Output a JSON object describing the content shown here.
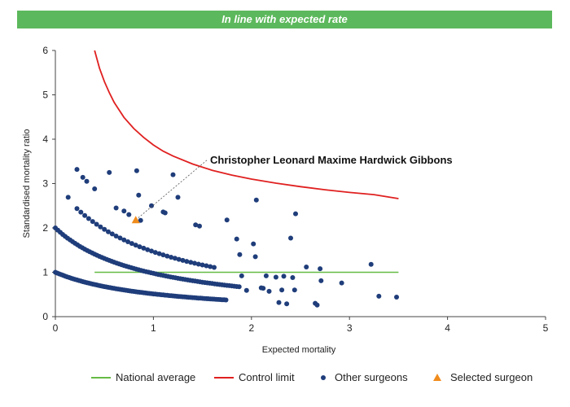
{
  "banner": {
    "text": "In line with expected rate",
    "color": "#5cb85c"
  },
  "chart_data": {
    "type": "scatter",
    "xlabel": "Expected mortality",
    "ylabel": "Standardised mortality ratio",
    "xlim": [
      0,
      5
    ],
    "ylim": [
      0,
      6
    ],
    "x_ticks": [
      "0",
      "1",
      "2",
      "3",
      "4",
      "5"
    ],
    "y_ticks": [
      "0",
      "1",
      "2",
      "3",
      "4",
      "5",
      "6"
    ],
    "grid": false,
    "legend_position": "bottom",
    "legend": [
      {
        "label": "National average",
        "kind": "line",
        "color": "#66bb44"
      },
      {
        "label": "Control limit",
        "kind": "line",
        "color": "#e02020"
      },
      {
        "label": "Other surgeons",
        "kind": "dot",
        "color": "#1f3d7a"
      },
      {
        "label": "Selected surgeon",
        "kind": "triangle",
        "color": "#f08c1c"
      }
    ],
    "national_average": {
      "y": 1,
      "x_range": [
        0.4,
        3.5
      ]
    },
    "control_limit": {
      "x": [
        0.4,
        0.45,
        0.5,
        0.55,
        0.6,
        0.7,
        0.8,
        0.9,
        1.0,
        1.1,
        1.2,
        1.4,
        1.6,
        1.8,
        2.0,
        2.25,
        2.5,
        2.75,
        3.0,
        3.25,
        3.5
      ],
      "y": [
        6.0,
        5.6,
        5.3,
        5.05,
        4.83,
        4.49,
        4.24,
        4.04,
        3.87,
        3.73,
        3.62,
        3.44,
        3.3,
        3.19,
        3.1,
        3.01,
        2.93,
        2.86,
        2.8,
        2.75,
        2.66
      ]
    },
    "band_curves": [
      {
        "k": 1,
        "x_range": [
          0.0,
          1.75
        ],
        "step": 0.02
      },
      {
        "k": 2,
        "x_range": [
          0.0,
          1.88
        ],
        "step": 0.025
      },
      {
        "k": 3,
        "x_range": [
          0.22,
          1.62
        ],
        "step": 0.04
      }
    ],
    "other_surgeons_scatter": [
      [
        0.13,
        2.69
      ],
      [
        0.22,
        3.32
      ],
      [
        0.28,
        3.14
      ],
      [
        0.32,
        3.05
      ],
      [
        0.4,
        2.88
      ],
      [
        0.55,
        3.25
      ],
      [
        0.62,
        2.45
      ],
      [
        0.7,
        2.38
      ],
      [
        0.75,
        2.3
      ],
      [
        0.83,
        3.29
      ],
      [
        0.85,
        2.74
      ],
      [
        0.87,
        2.17
      ],
      [
        0.98,
        2.5
      ],
      [
        1.1,
        2.36
      ],
      [
        1.12,
        2.34
      ],
      [
        1.2,
        3.2
      ],
      [
        1.25,
        2.69
      ],
      [
        1.43,
        2.07
      ],
      [
        1.47,
        2.04
      ],
      [
        1.75,
        2.18
      ],
      [
        1.85,
        1.75
      ],
      [
        1.88,
        1.4
      ],
      [
        1.9,
        0.92
      ],
      [
        1.95,
        0.59
      ],
      [
        2.02,
        1.64
      ],
      [
        2.04,
        1.35
      ],
      [
        2.05,
        2.63
      ],
      [
        2.1,
        0.65
      ],
      [
        2.12,
        0.64
      ],
      [
        2.15,
        0.92
      ],
      [
        2.18,
        0.57
      ],
      [
        2.25,
        0.89
      ],
      [
        2.28,
        0.32
      ],
      [
        2.31,
        0.6
      ],
      [
        2.33,
        0.91
      ],
      [
        2.36,
        0.29
      ],
      [
        2.4,
        1.77
      ],
      [
        2.42,
        0.88
      ],
      [
        2.44,
        0.6
      ],
      [
        2.45,
        2.32
      ],
      [
        2.56,
        1.12
      ],
      [
        2.65,
        0.3
      ],
      [
        2.67,
        0.26
      ],
      [
        2.7,
        1.08
      ],
      [
        2.71,
        0.81
      ],
      [
        2.92,
        0.76
      ],
      [
        3.22,
        1.18
      ],
      [
        3.3,
        0.46
      ],
      [
        3.48,
        0.44
      ]
    ],
    "selected_surgeon": {
      "name": "Christopher Leonard Maxime Hardwick Gibbons",
      "x": 0.82,
      "y": 2.18
    }
  }
}
